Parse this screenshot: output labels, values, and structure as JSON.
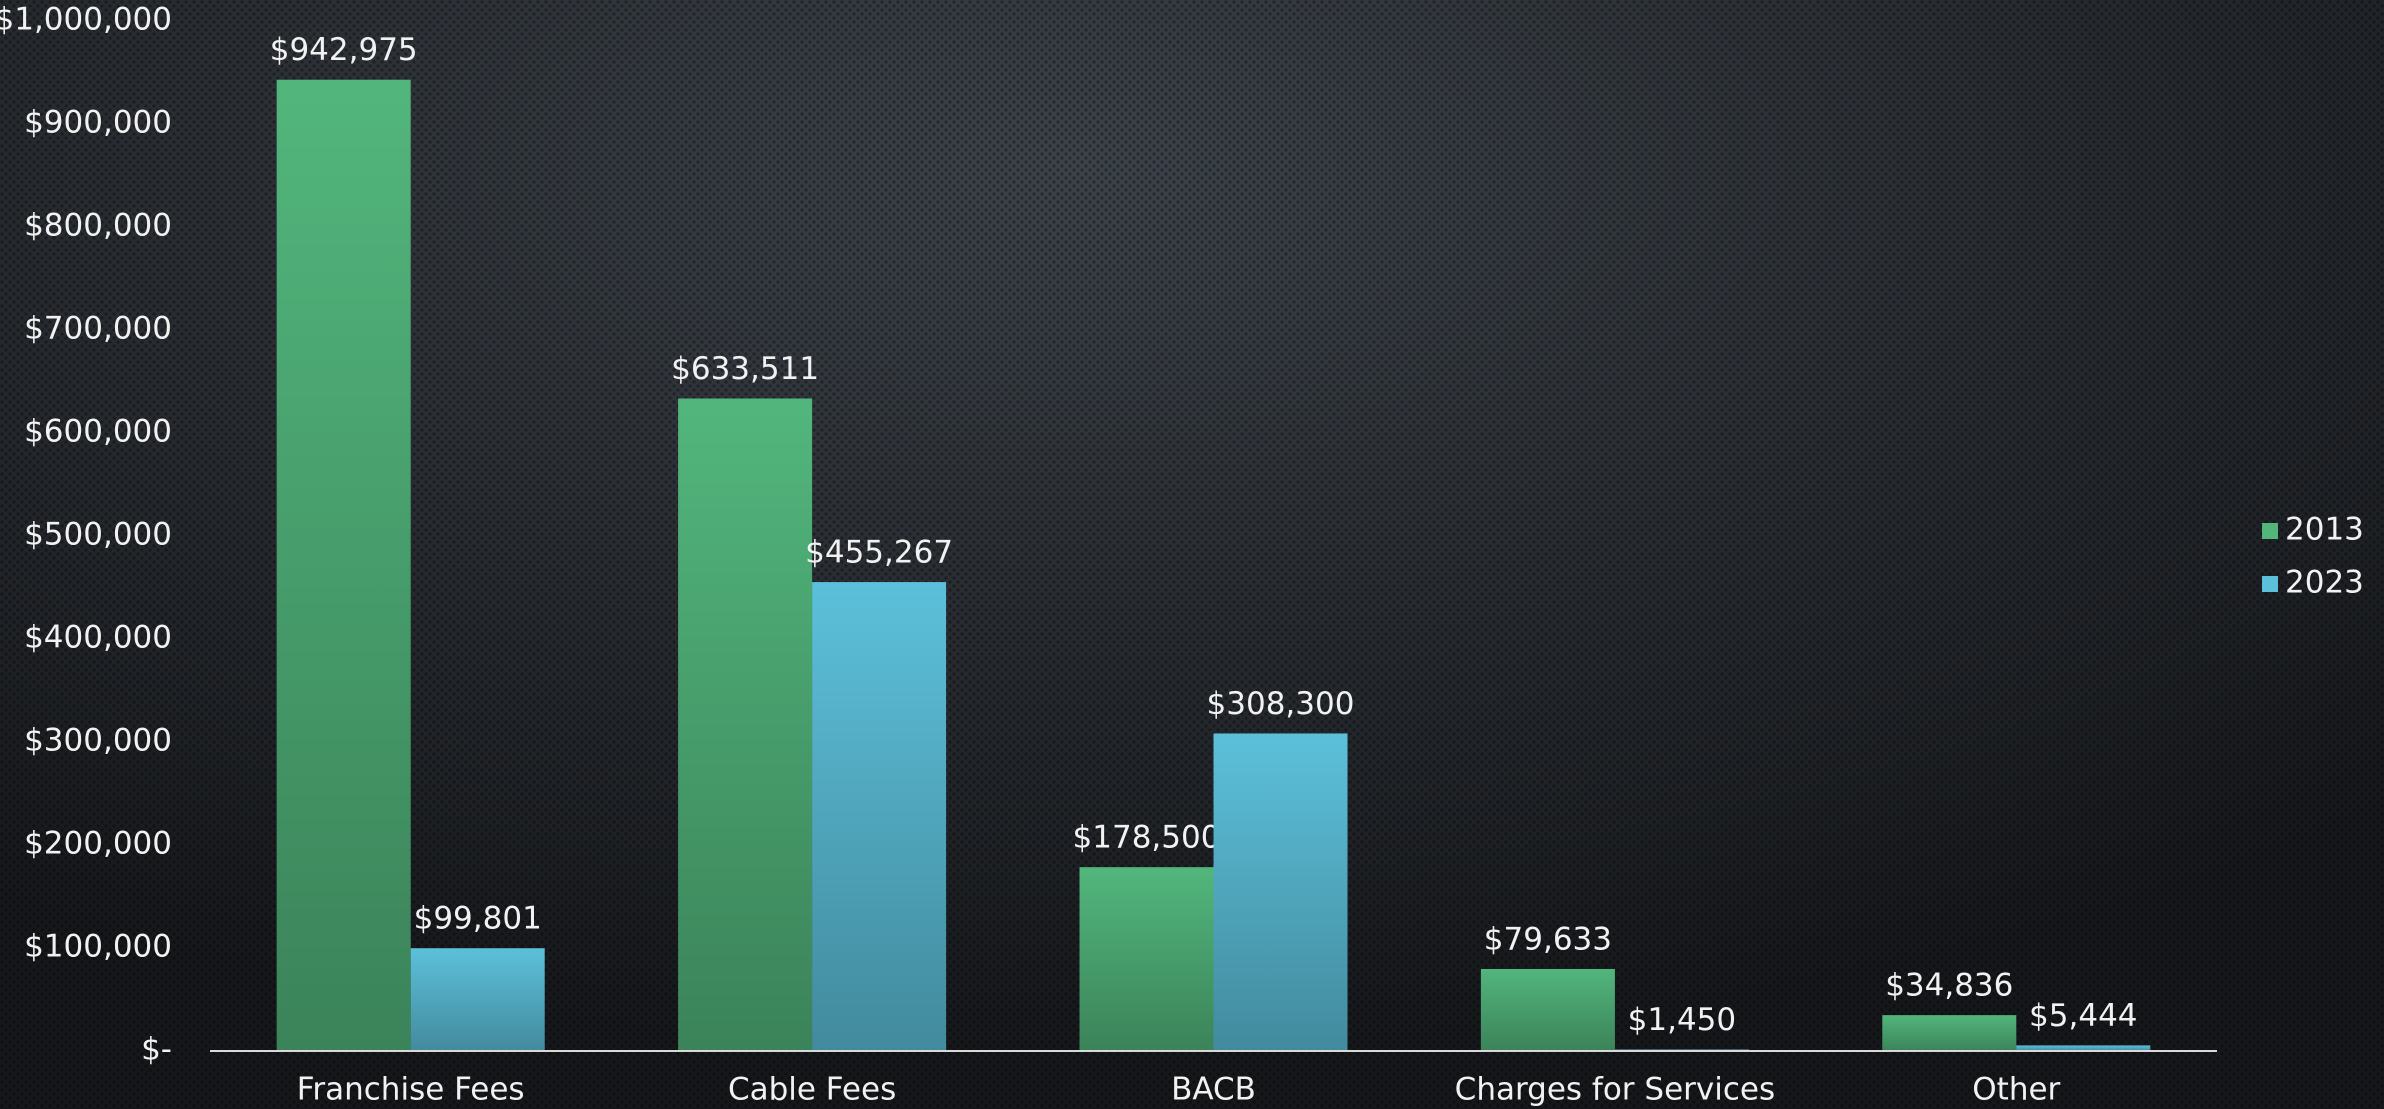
{
  "chart_data": {
    "type": "bar",
    "categories": [
      "Franchise Fees",
      "Cable Fees",
      "BACB",
      "Charges for Services",
      "Other"
    ],
    "series": [
      {
        "name": "2013",
        "color": "#52b67c",
        "values": [
          942975,
          633511,
          178500,
          79633,
          34836
        ],
        "value_labels": [
          "$942,975",
          "$633,511",
          "$178,500",
          "$79,633",
          "$34,836"
        ]
      },
      {
        "name": "2023",
        "color": "#5cc0da",
        "values": [
          99801,
          455267,
          308300,
          1450,
          5444
        ],
        "value_labels": [
          "$99,801",
          "$455,267",
          "$308,300",
          "$1,450",
          "$5,444"
        ]
      }
    ],
    "ylim": [
      0,
      1000000
    ],
    "yticks": [
      {
        "value": 0,
        "label": "$-"
      },
      {
        "value": 100000,
        "label": "$100,000"
      },
      {
        "value": 200000,
        "label": "$200,000"
      },
      {
        "value": 300000,
        "label": "$300,000"
      },
      {
        "value": 400000,
        "label": "$400,000"
      },
      {
        "value": 500000,
        "label": "$500,000"
      },
      {
        "value": 600000,
        "label": "$600,000"
      },
      {
        "value": 700000,
        "label": "$700,000"
      },
      {
        "value": 800000,
        "label": "$800,000"
      },
      {
        "value": 900000,
        "label": "$900,000"
      },
      {
        "value": 1000000,
        "label": "$1,000,000"
      }
    ],
    "legend": "right"
  }
}
